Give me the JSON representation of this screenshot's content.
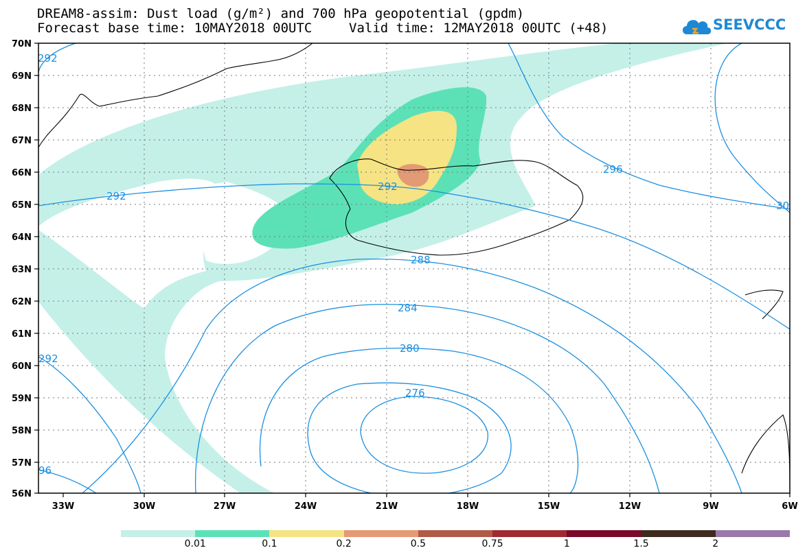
{
  "title": {
    "line1": "DREAM8-assim: Dust load (g/m²) and 700 hPa geopotential (gpdm)",
    "line2": "Forecast base time: 10MAY2018 00UTC",
    "valid": "Valid time: 12MAY2018 00UTC (+48)"
  },
  "logo": {
    "text": "SEEVCCC",
    "color": "#1e88d4"
  },
  "axes": {
    "lat_labels": [
      "70N",
      "69N",
      "68N",
      "67N",
      "66N",
      "65N",
      "64N",
      "63N",
      "62N",
      "61N",
      "60N",
      "59N",
      "58N",
      "57N",
      "56N"
    ],
    "lon_labels": [
      "33W",
      "30W",
      "27W",
      "24W",
      "21W",
      "18W",
      "15W",
      "12W",
      "9W",
      "6W"
    ]
  },
  "contours": {
    "color": "#1a8fe0",
    "labels": [
      "292",
      "292",
      "296",
      "30",
      "292",
      "288",
      "284",
      "280",
      "276",
      "96",
      "292"
    ]
  },
  "legend": {
    "colors": [
      "#c4f0e8",
      "#5ce1b6",
      "#f6e384",
      "#e49a74",
      "#b05a48",
      "#a02a32",
      "#7a0a2a",
      "#3e2a1e",
      "#9a78a8"
    ],
    "labels": [
      "0.01",
      "0.1",
      "0.2",
      "0.5",
      "0.75",
      "1",
      "1.5",
      "2"
    ]
  },
  "colors": {
    "coast": "#000000",
    "grid": "#777777"
  }
}
